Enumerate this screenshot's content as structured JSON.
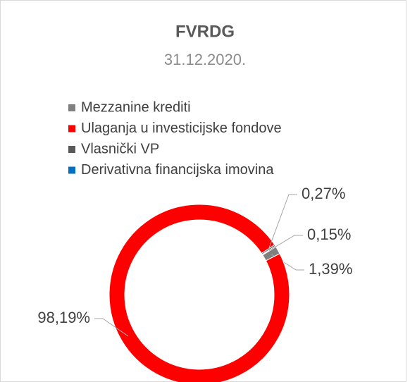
{
  "chart_data": {
    "type": "donut",
    "title": "FVRDG",
    "subtitle": "31.12.2020.",
    "categories": [
      "Mezzanine krediti",
      "Ulaganja u investicijske fondove",
      "Vlasnički VP",
      "Derivativna financijska imovina"
    ],
    "values": [
      1.39,
      98.19,
      0.27,
      0.15
    ],
    "value_labels": [
      "1,39%",
      "98,19%",
      "0,27%",
      "0,15%"
    ],
    "colors": [
      "#7f7f7f",
      "#ff0000",
      "#595959",
      "#0070c0"
    ],
    "legend": "top"
  }
}
